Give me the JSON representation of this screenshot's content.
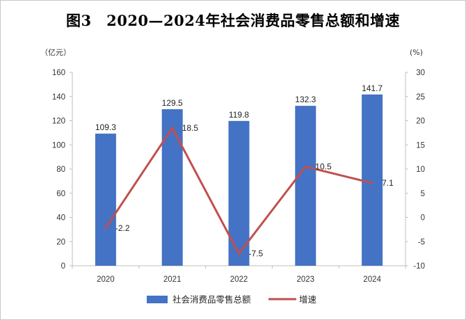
{
  "chart_data": {
    "type": "bar+line",
    "title": "图3　2020—2024年社会消费品零售总额和增速",
    "categories": [
      "2020",
      "2021",
      "2022",
      "2023",
      "2024"
    ],
    "series": [
      {
        "name": "社会消费品零售总额",
        "type": "bar",
        "axis": "left",
        "values": [
          109.3,
          129.5,
          119.8,
          132.3,
          141.7
        ],
        "color": "#4472C4"
      },
      {
        "name": "增速",
        "type": "line",
        "axis": "right",
        "values": [
          -2.2,
          18.5,
          -7.5,
          10.5,
          7.1
        ],
        "color": "#C0504D"
      }
    ],
    "left_axis": {
      "unit": "（亿元）",
      "ylim": [
        0,
        160
      ],
      "ticks": [
        0,
        20,
        40,
        60,
        80,
        100,
        120,
        140,
        160
      ]
    },
    "right_axis": {
      "unit": "(%)",
      "ylim": [
        -10,
        30
      ],
      "ticks": [
        -10,
        -5,
        0,
        5,
        10,
        15,
        20,
        25,
        30
      ]
    },
    "bar_labels": [
      "109.3",
      "129.5",
      "119.8",
      "132.3",
      "141.7"
    ],
    "line_labels": [
      "-2.2",
      "18.5",
      "-7.5",
      "10.5",
      "7.1"
    ],
    "legend": {
      "position": "bottom",
      "items": [
        "社会消费品零售总额",
        "增速"
      ]
    },
    "grid": false
  }
}
